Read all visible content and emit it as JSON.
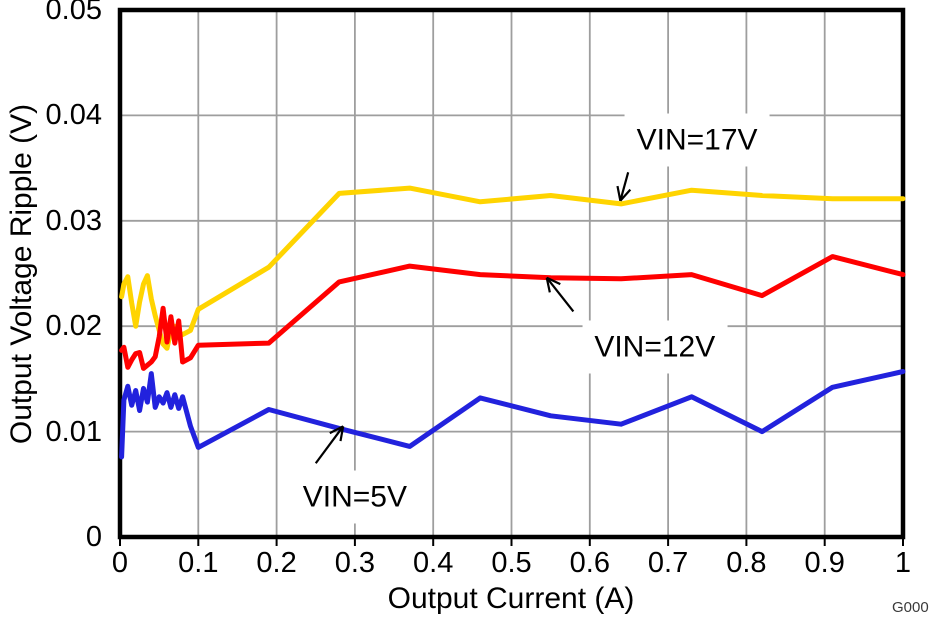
{
  "chart_data": {
    "type": "line",
    "title": "",
    "xlabel": "Output Current (A)",
    "ylabel": "Output Voltage Ripple (V)",
    "xlim": [
      0,
      1
    ],
    "ylim": [
      0,
      0.05
    ],
    "grid": true,
    "legend_position": "inline-annotations",
    "x_ticks": [
      0,
      0.1,
      0.2,
      0.3,
      0.4,
      0.5,
      0.6,
      0.7,
      0.8,
      0.9,
      1
    ],
    "x_tick_labels": [
      "0",
      "0.1",
      "0.2",
      "0.3",
      "0.4",
      "0.5",
      "0.6",
      "0.7",
      "0.8",
      "0.9",
      "1"
    ],
    "y_ticks": [
      0,
      0.01,
      0.02,
      0.03,
      0.04,
      0.05
    ],
    "y_tick_labels": [
      "0",
      "0.01",
      "0.02",
      "0.03",
      "0.04",
      "0.05"
    ],
    "x": [
      0.002,
      0.005,
      0.01,
      0.015,
      0.02,
      0.025,
      0.03,
      0.035,
      0.04,
      0.045,
      0.05,
      0.055,
      0.06,
      0.065,
      0.07,
      0.075,
      0.08,
      0.09,
      0.1,
      0.19,
      0.28,
      0.37,
      0.46,
      0.55,
      0.64,
      0.73,
      0.82,
      0.91,
      1.0
    ],
    "series": [
      {
        "name": "VIN=17V",
        "color": "#FFD400",
        "values": [
          0.0228,
          0.024,
          0.0247,
          0.0222,
          0.02,
          0.0223,
          0.024,
          0.0248,
          0.0226,
          0.021,
          0.0196,
          0.0183,
          0.0179,
          0.0196,
          0.02,
          0.0194,
          0.0192,
          0.0196,
          0.0216,
          0.0256,
          0.0326,
          0.0331,
          0.0318,
          0.0324,
          0.0316,
          0.0329,
          0.0324,
          0.0321,
          0.0321
        ]
      },
      {
        "name": "VIN=12V",
        "color": "#FF0000",
        "values": [
          0.0177,
          0.018,
          0.0161,
          0.0168,
          0.0174,
          0.0175,
          0.016,
          0.0163,
          0.0166,
          0.0171,
          0.019,
          0.0217,
          0.0185,
          0.0209,
          0.0184,
          0.0205,
          0.0166,
          0.017,
          0.0182,
          0.0184,
          0.0242,
          0.0257,
          0.0249,
          0.0246,
          0.0245,
          0.0249,
          0.0229,
          0.0266,
          0.0249
        ]
      },
      {
        "name": "VIN=5V",
        "color": "#2222DD",
        "values": [
          0.0076,
          0.013,
          0.0143,
          0.0125,
          0.0139,
          0.012,
          0.0141,
          0.0128,
          0.0155,
          0.0123,
          0.0133,
          0.0127,
          0.0137,
          0.0123,
          0.0135,
          0.0122,
          0.0133,
          0.0105,
          0.0085,
          0.0121,
          0.0103,
          0.0086,
          0.0132,
          0.0115,
          0.0107,
          0.0133,
          0.01,
          0.0142,
          0.0157
        ]
      }
    ],
    "annotations": [
      {
        "text": "VIN=17V",
        "label_x": 0.737,
        "label_y": 0.0377,
        "arrow_from_x": 0.649,
        "arrow_from_y": 0.0346,
        "arrow_to_x": 0.639,
        "arrow_to_y": 0.0319
      },
      {
        "text": "VIN=12V",
        "label_x": 0.683,
        "label_y": 0.018,
        "arrow_from_x": 0.579,
        "arrow_from_y": 0.0214,
        "arrow_to_x": 0.545,
        "arrow_to_y": 0.0246
      },
      {
        "text": "VIN=5V",
        "label_x": 0.3,
        "label_y": 0.0038,
        "arrow_from_x": 0.25,
        "arrow_from_y": 0.007,
        "arrow_to_x": 0.285,
        "arrow_to_y": 0.0105
      }
    ],
    "watermark": "G000",
    "colors": {
      "grid": "#9E9E9E",
      "frame": "#000000",
      "text": "#000000"
    }
  }
}
